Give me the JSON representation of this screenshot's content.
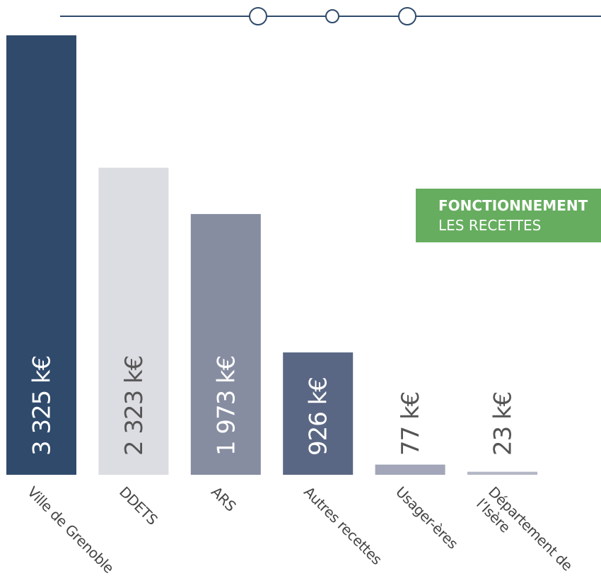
{
  "chart_data": {
    "type": "bar",
    "title": "FONCTIONNEMENT",
    "subtitle": "LES RECETTES",
    "categories": [
      "Ville de Grenoble",
      "DDETS",
      "ARS",
      "Autres recettes",
      "Usager-ères",
      "Département de l’Isère"
    ],
    "values": [
      3325,
      2323,
      1973,
      926,
      77,
      23
    ],
    "value_labels": [
      "3 325 k€",
      "2 323 k€",
      "1 973 k€",
      "926 k€",
      "77 k€",
      "23 k€"
    ],
    "colors": [
      "#2f4a6b",
      "#dcdde2",
      "#878da1",
      "#5a6784",
      "#a2a6b8",
      "#b4b7c6"
    ],
    "legend_color": "#66ad5f"
  }
}
